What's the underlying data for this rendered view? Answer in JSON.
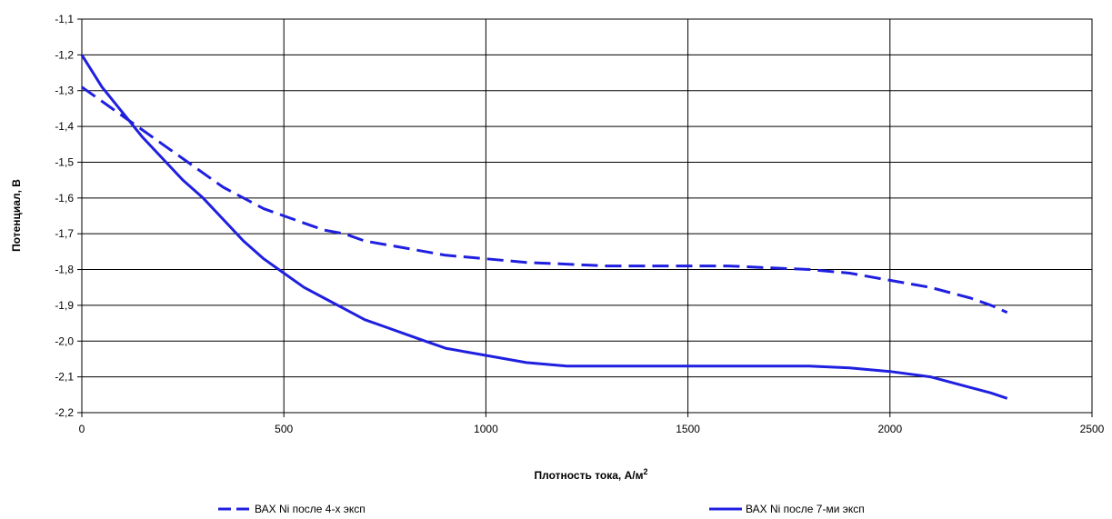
{
  "chart_data": {
    "type": "line",
    "title": "",
    "xlabel": "Плотность тока, А/м",
    "xlabel_superscript": "2",
    "ylabel": "Потенциал, В",
    "xlim": [
      0,
      2500
    ],
    "ylim": [
      -2.2,
      -1.1
    ],
    "x_ticks": [
      {
        "value": 0,
        "label": "0"
      },
      {
        "value": 500,
        "label": "500"
      },
      {
        "value": 1000,
        "label": "1000"
      },
      {
        "value": 1500,
        "label": "1500"
      },
      {
        "value": 2000,
        "label": "2000"
      },
      {
        "value": 2500,
        "label": "2500"
      }
    ],
    "y_ticks": [
      {
        "value": -1.1,
        "label": "-1,1"
      },
      {
        "value": -1.2,
        "label": "-1,2"
      },
      {
        "value": -1.3,
        "label": "-1,3"
      },
      {
        "value": -1.4,
        "label": "-1,4"
      },
      {
        "value": -1.5,
        "label": "-1,5"
      },
      {
        "value": -1.6,
        "label": "-1,6"
      },
      {
        "value": -1.7,
        "label": "-1,7"
      },
      {
        "value": -1.8,
        "label": "-1,8"
      },
      {
        "value": -1.9,
        "label": "-1,9"
      },
      {
        "value": -2.0,
        "label": "-2,0"
      },
      {
        "value": -2.1,
        "label": "-2,1"
      },
      {
        "value": -2.2,
        "label": "-2,2"
      }
    ],
    "grid": true,
    "legend_position": "bottom",
    "series": [
      {
        "name": "ВАХ Ni после 4-х эксп",
        "style": "dashed",
        "color": "#1f1fe0",
        "points": [
          [
            0,
            -1.29
          ],
          [
            50,
            -1.33
          ],
          [
            100,
            -1.37
          ],
          [
            150,
            -1.41
          ],
          [
            200,
            -1.45
          ],
          [
            250,
            -1.49
          ],
          [
            300,
            -1.53
          ],
          [
            350,
            -1.57
          ],
          [
            400,
            -1.6
          ],
          [
            450,
            -1.63
          ],
          [
            500,
            -1.65
          ],
          [
            550,
            -1.67
          ],
          [
            600,
            -1.69
          ],
          [
            650,
            -1.7
          ],
          [
            700,
            -1.72
          ],
          [
            750,
            -1.73
          ],
          [
            800,
            -1.74
          ],
          [
            900,
            -1.76
          ],
          [
            1000,
            -1.77
          ],
          [
            1100,
            -1.78
          ],
          [
            1200,
            -1.785
          ],
          [
            1300,
            -1.79
          ],
          [
            1400,
            -1.79
          ],
          [
            1500,
            -1.79
          ],
          [
            1600,
            -1.79
          ],
          [
            1700,
            -1.795
          ],
          [
            1800,
            -1.8
          ],
          [
            1900,
            -1.81
          ],
          [
            2000,
            -1.83
          ],
          [
            2100,
            -1.85
          ],
          [
            2200,
            -1.88
          ],
          [
            2250,
            -1.9
          ],
          [
            2290,
            -1.92
          ]
        ]
      },
      {
        "name": "ВАХ Ni после 7-ми эксп",
        "style": "solid",
        "color": "#1f1fe0",
        "points": [
          [
            0,
            -1.2
          ],
          [
            50,
            -1.29
          ],
          [
            100,
            -1.36
          ],
          [
            150,
            -1.43
          ],
          [
            200,
            -1.49
          ],
          [
            250,
            -1.55
          ],
          [
            300,
            -1.6
          ],
          [
            350,
            -1.66
          ],
          [
            400,
            -1.72
          ],
          [
            450,
            -1.77
          ],
          [
            500,
            -1.81
          ],
          [
            550,
            -1.85
          ],
          [
            600,
            -1.88
          ],
          [
            650,
            -1.91
          ],
          [
            700,
            -1.94
          ],
          [
            750,
            -1.96
          ],
          [
            800,
            -1.98
          ],
          [
            850,
            -2.0
          ],
          [
            900,
            -2.02
          ],
          [
            950,
            -2.03
          ],
          [
            1000,
            -2.04
          ],
          [
            1100,
            -2.06
          ],
          [
            1200,
            -2.07
          ],
          [
            1300,
            -2.07
          ],
          [
            1400,
            -2.07
          ],
          [
            1500,
            -2.07
          ],
          [
            1600,
            -2.07
          ],
          [
            1700,
            -2.07
          ],
          [
            1800,
            -2.07
          ],
          [
            1900,
            -2.075
          ],
          [
            2000,
            -2.085
          ],
          [
            2100,
            -2.1
          ],
          [
            2200,
            -2.13
          ],
          [
            2250,
            -2.145
          ],
          [
            2290,
            -2.16
          ]
        ]
      }
    ]
  }
}
